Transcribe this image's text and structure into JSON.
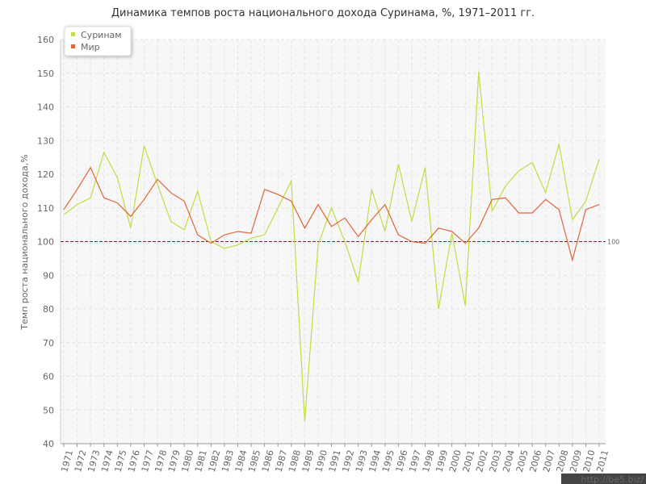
{
  "chart_data": {
    "type": "line",
    "title": "Динамика темпов роста национального дохода Суринама, %, 1971–2011 гг.",
    "y_label": "Темп роста национального дохода,%",
    "categories": [
      "1971",
      "1972",
      "1973",
      "1974",
      "1975",
      "1976",
      "1977",
      "1978",
      "1979",
      "1980",
      "1981",
      "1982",
      "1983",
      "1984",
      "1985",
      "1986",
      "1987",
      "1988",
      "1989",
      "1990",
      "1991",
      "1992",
      "1993",
      "1994",
      "1995",
      "1996",
      "1997",
      "1998",
      "1999",
      "2000",
      "2001",
      "2002",
      "2003",
      "2004",
      "2005",
      "2006",
      "2007",
      "2008",
      "2009",
      "2010",
      "2011"
    ],
    "series": [
      {
        "name": "Суринам",
        "color": "#c2dc45",
        "values": [
          108,
          111,
          113,
          126.5,
          119,
          104,
          128.5,
          117,
          106,
          103.5,
          115,
          100,
          98,
          99,
          101,
          102,
          110,
          118,
          46.5,
          99,
          110,
          100,
          88,
          115.5,
          103,
          123,
          106,
          122,
          80,
          102.5,
          81,
          150.5,
          109,
          116.5,
          121,
          123.5,
          114.5,
          129,
          106.5,
          112,
          124.5
        ]
      },
      {
        "name": "Мир",
        "color": "#e0643a",
        "values": [
          109.5,
          115.5,
          122,
          113,
          111.5,
          107.5,
          112.5,
          118.5,
          114.5,
          112,
          102,
          99.5,
          102,
          103,
          102.5,
          115.5,
          114,
          112,
          104,
          111,
          104.5,
          107,
          101.5,
          106.5,
          111,
          102,
          100,
          99.5,
          104,
          103,
          99.5,
          104,
          112.5,
          113,
          108.5,
          108.5,
          112.5,
          109.5,
          94.5,
          109.5,
          111
        ]
      }
    ],
    "ylim": [
      40,
      160
    ],
    "yticks": [
      40,
      50,
      60,
      70,
      80,
      90,
      100,
      110,
      120,
      130,
      140,
      150,
      160
    ],
    "grid": true,
    "legend": "top-left",
    "reference_line": {
      "value": 100,
      "color": "#8b1a2b"
    },
    "watermark": "http://be5.biz/"
  }
}
